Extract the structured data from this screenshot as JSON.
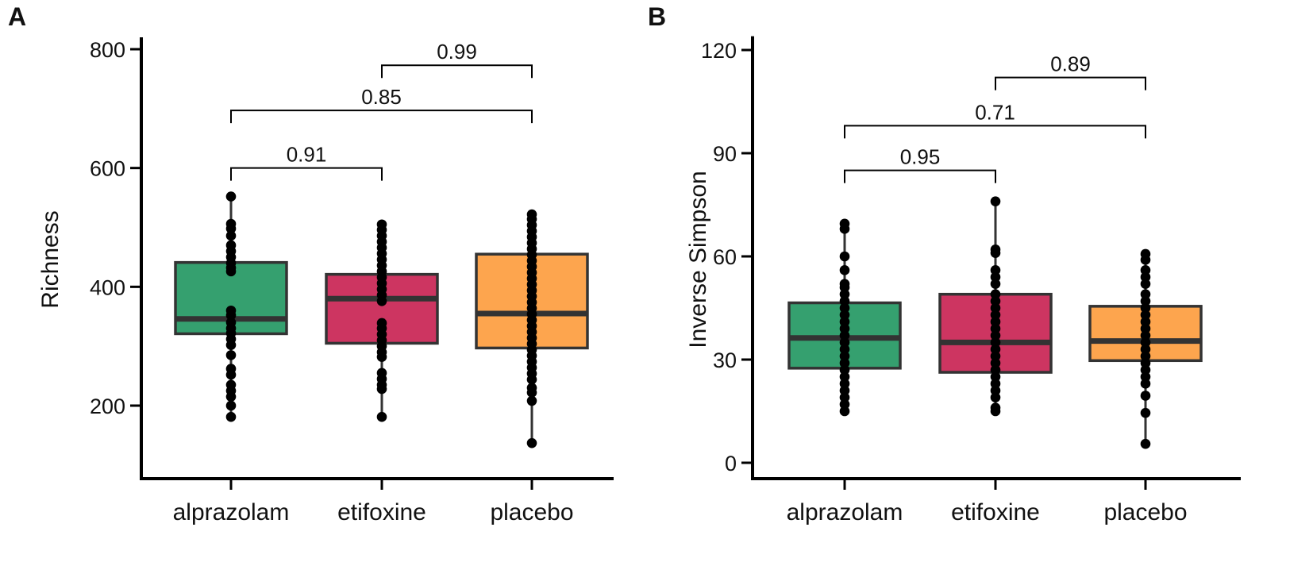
{
  "chart_data": [
    {
      "type": "box",
      "panel_label": "A",
      "ylabel": "Richness",
      "xlabel": "",
      "ylim": [
        110,
        820
      ],
      "yticks": [
        200,
        400,
        600,
        800
      ],
      "grid": false,
      "categories": [
        "alprazolam",
        "etifoxine",
        "placebo"
      ],
      "colors": [
        "#35a06f",
        "#cd3561",
        "#fda54e"
      ],
      "boxes": [
        {
          "q1": 321,
          "median": 346,
          "q3": 441,
          "whisker_low": 181,
          "whisker_high": 552
        },
        {
          "q1": 305,
          "median": 380,
          "q3": 421,
          "whisker_low": 181,
          "whisker_high": 505
        },
        {
          "q1": 297,
          "median": 355,
          "q3": 455,
          "whisker_low": 137,
          "whisker_high": 522
        }
      ],
      "points": [
        [
          552,
          506,
          498,
          486,
          470,
          460,
          450,
          440,
          432,
          426,
          360,
          352,
          340,
          330,
          322,
          312,
          302,
          285,
          262,
          252,
          235,
          225,
          215,
          200,
          181
        ],
        [
          505,
          496,
          486,
          476,
          466,
          456,
          446,
          436,
          426,
          416,
          406,
          396,
          386,
          376,
          339,
          330,
          320,
          310,
          300,
          290,
          282,
          255,
          245,
          235,
          228,
          181
        ],
        [
          522,
          514,
          504,
          494,
          484,
          474,
          464,
          454,
          444,
          434,
          424,
          414,
          404,
          394,
          384,
          374,
          364,
          354,
          344,
          334,
          324,
          314,
          304,
          294,
          284,
          274,
          264,
          254,
          244,
          230,
          222,
          208,
          137
        ]
      ],
      "comparisons": [
        {
          "from": 0,
          "to": 1,
          "label": "0.91",
          "y": 600
        },
        {
          "from": 0,
          "to": 2,
          "label": "0.85",
          "y": 697
        },
        {
          "from": 1,
          "to": 2,
          "label": "0.99",
          "y": 773
        }
      ]
    },
    {
      "type": "box",
      "panel_label": "B",
      "ylabel": "Inverse Simpson",
      "xlabel": "",
      "ylim": [
        -5,
        124
      ],
      "yticks": [
        0,
        30,
        60,
        90,
        120
      ],
      "grid": false,
      "categories": [
        "alprazolam",
        "etifoxine",
        "placebo"
      ],
      "colors": [
        "#35a06f",
        "#cd3561",
        "#fda54e"
      ],
      "boxes": [
        {
          "q1": 27.5,
          "median": 36.3,
          "q3": 46.5,
          "whisker_low": 15,
          "whisker_high": 69.5
        },
        {
          "q1": 26.3,
          "median": 35.0,
          "q3": 49.0,
          "whisker_low": 15,
          "whisker_high": 76.0
        },
        {
          "q1": 29.7,
          "median": 35.4,
          "q3": 45.5,
          "whisker_low": 5.5,
          "whisker_high": 60.7
        }
      ],
      "points": [
        [
          69.5,
          68,
          60,
          56,
          52,
          51,
          49,
          47,
          45,
          43,
          41,
          39,
          37,
          35,
          33,
          31,
          29,
          27,
          25,
          23,
          21,
          19,
          17,
          15
        ],
        [
          76,
          62,
          61,
          56,
          54,
          52,
          49,
          47,
          45,
          43,
          41,
          39,
          37,
          35,
          33,
          31,
          29,
          27,
          25,
          23,
          21,
          19,
          16,
          15
        ],
        [
          60.7,
          59,
          56,
          54,
          52,
          49,
          47,
          45,
          43,
          41,
          39,
          37,
          35,
          33,
          31,
          29,
          27,
          25,
          23,
          19.5,
          14.5,
          5.5
        ]
      ],
      "comparisons": [
        {
          "from": 0,
          "to": 1,
          "label": "0.95",
          "y": 85
        },
        {
          "from": 0,
          "to": 2,
          "label": "0.71",
          "y": 98
        },
        {
          "from": 1,
          "to": 2,
          "label": "0.89",
          "y": 112
        }
      ]
    }
  ]
}
